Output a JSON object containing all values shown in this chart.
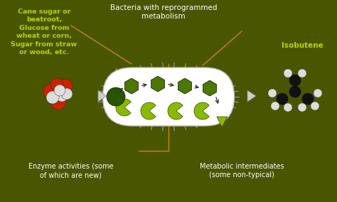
{
  "bg_color": "#4a5500",
  "text_color_white": "#ffffff",
  "text_color_yellow_green": "#b8d400",
  "arrow_color": "#cc8800",
  "left_label": "Cane sugar or\nbeetroot,\nGlucose from\nwheat or corn,\nSugar from straw\nor wood, etc.",
  "top_label": "Bacteria with reprogrammed\nmetabolism",
  "bottom_left_label": "Enzyme activities (some\nof which are new)",
  "bottom_right_label": "Metabolic intermediates\n(some non-typical)",
  "right_label": "Isobutene",
  "figsize": [
    4.74,
    2.84
  ],
  "dpi": 100
}
